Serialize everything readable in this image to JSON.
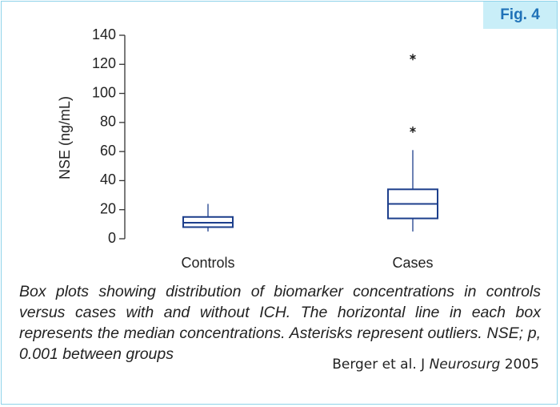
{
  "figure_label": "Fig. 4",
  "chart_data": {
    "type": "box",
    "ylabel": "NSE (ng/mL)",
    "categories": [
      "Controls",
      "Cases"
    ],
    "color": "#1d3f8c",
    "boxes": [
      {
        "whisker_low": 5,
        "q1": 8,
        "median": 11,
        "q3": 15,
        "whisker_high": 24,
        "outliers": []
      },
      {
        "whisker_low": 5,
        "q1": 14,
        "median": 24,
        "q3": 34,
        "whisker_high": 61,
        "outliers": [
          75,
          125
        ]
      }
    ],
    "ylim": [
      0,
      140
    ],
    "yticks": [
      0,
      20,
      40,
      60,
      80,
      100,
      120,
      140
    ]
  },
  "caption": "Box plots showing distribution of biomarker concentrations in controls versus cases with and without ICH. The horizontal line in each box represents the median concentrations. Asterisks represent outliers. NSE; p, 0.001 between groups",
  "citation": {
    "authors": "Berger et al. J",
    "journal": "Neurosurg",
    "year": "2005"
  }
}
